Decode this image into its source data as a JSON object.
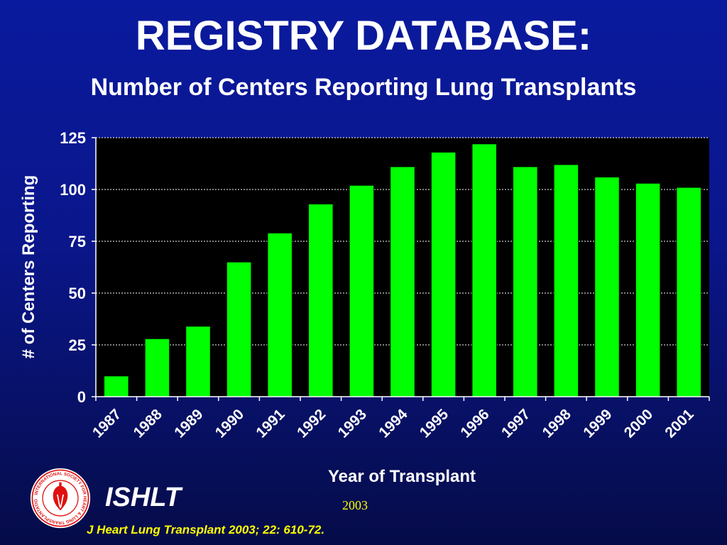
{
  "slide": {
    "title": "REGISTRY DATABASE:",
    "subtitle": "Number of Centers Reporting Lung Transplants",
    "organization": "ISHLT",
    "year": "2003",
    "citation": "J Heart Lung Transplant 2003; 22: 610-72.",
    "logo_text": "INTERNATIONAL SOCIETY FOR HEART & LUNG TRANSPLANTATION"
  },
  "colors": {
    "background_top": "#0a1a9e",
    "background_bottom": "#050b48",
    "plot_background": "#000000",
    "bar": "#00ff00",
    "text": "#ffffff",
    "footer_text": "#ffff00",
    "logo_red": "#e01010"
  },
  "chart_data": {
    "type": "bar",
    "categories": [
      "1987",
      "1988",
      "1989",
      "1990",
      "1991",
      "1992",
      "1993",
      "1994",
      "1995",
      "1996",
      "1997",
      "1998",
      "1999",
      "2000",
      "2001"
    ],
    "values": [
      10,
      28,
      34,
      65,
      79,
      93,
      102,
      111,
      118,
      122,
      111,
      112,
      106,
      103,
      101
    ],
    "xlabel": "Year of Transplant",
    "ylabel": "# of Centers Reporting",
    "ylim": [
      0,
      125
    ],
    "yticks": [
      0,
      25,
      50,
      75,
      100,
      125
    ],
    "grid": true,
    "legend": "none"
  }
}
